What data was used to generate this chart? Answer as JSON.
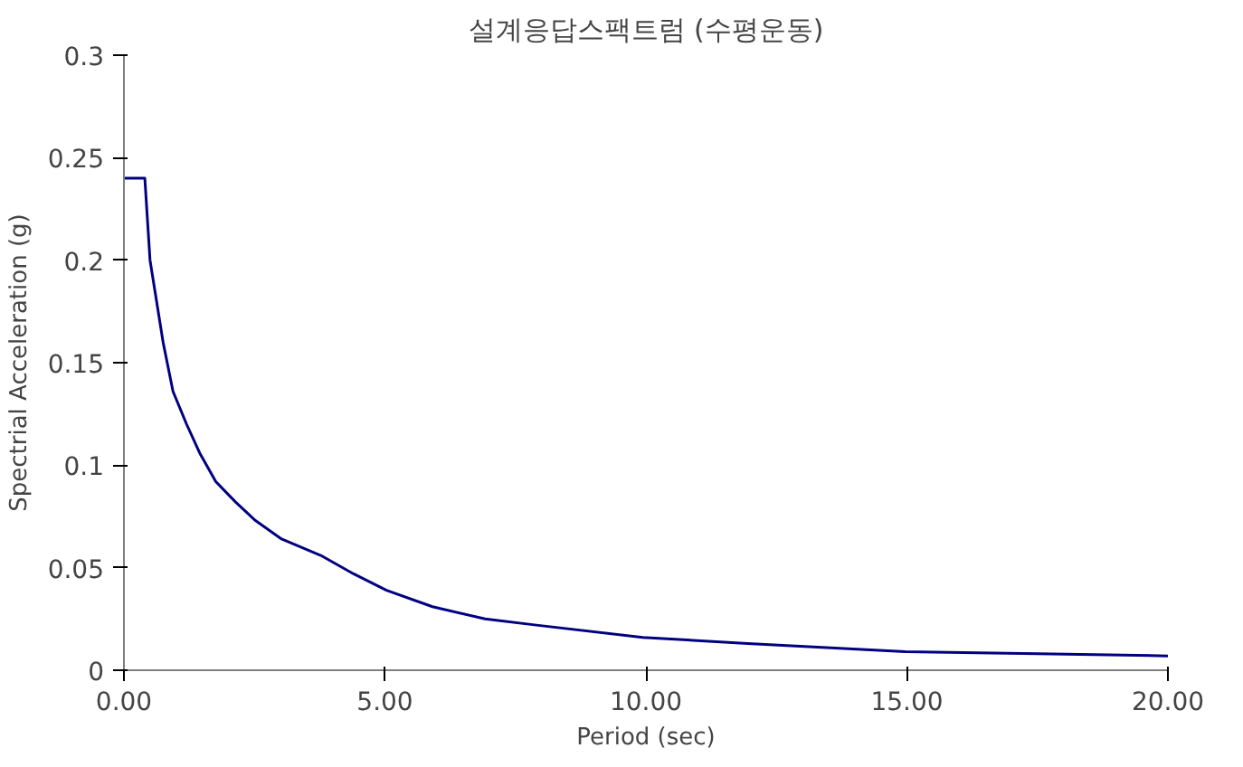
{
  "chart_data": {
    "type": "line",
    "title": "설계응답스팩트럼 (수평운동)",
    "xlabel": "Period (sec)",
    "ylabel": "Spectrial Acceleration (g)",
    "x": [
      0,
      0.4,
      0.5,
      0.75,
      0.94,
      1.2,
      1.45,
      1.76,
      2.14,
      2.52,
      3.02,
      3.77,
      4.4,
      5.03,
      5.91,
      6.92,
      7.9,
      9.94,
      11.95,
      14.97,
      17.5,
      20
    ],
    "series": [
      {
        "color": "#000080",
        "values": [
          0.24,
          0.24,
          0.2,
          0.16,
          0.136,
          0.12,
          0.106,
          0.092,
          0.082,
          0.073,
          0.064,
          0.056,
          0.047,
          0.039,
          0.031,
          0.025,
          0.022,
          0.016,
          0.013,
          0.009,
          0.008,
          0.007
        ]
      }
    ],
    "xlim": [
      0,
      20
    ],
    "ylim": [
      0,
      0.3
    ],
    "xticks": [
      {
        "value": 0,
        "label": "0.00"
      },
      {
        "value": 5,
        "label": "5.00"
      },
      {
        "value": 10,
        "label": "10.00"
      },
      {
        "value": 15,
        "label": "15.00"
      },
      {
        "value": 20,
        "label": "20.00"
      }
    ],
    "yticks": [
      0,
      0.05,
      0.1,
      0.15,
      0.2,
      0.25,
      0.3
    ],
    "grid": false,
    "marker": "none",
    "line_style": "solid"
  }
}
